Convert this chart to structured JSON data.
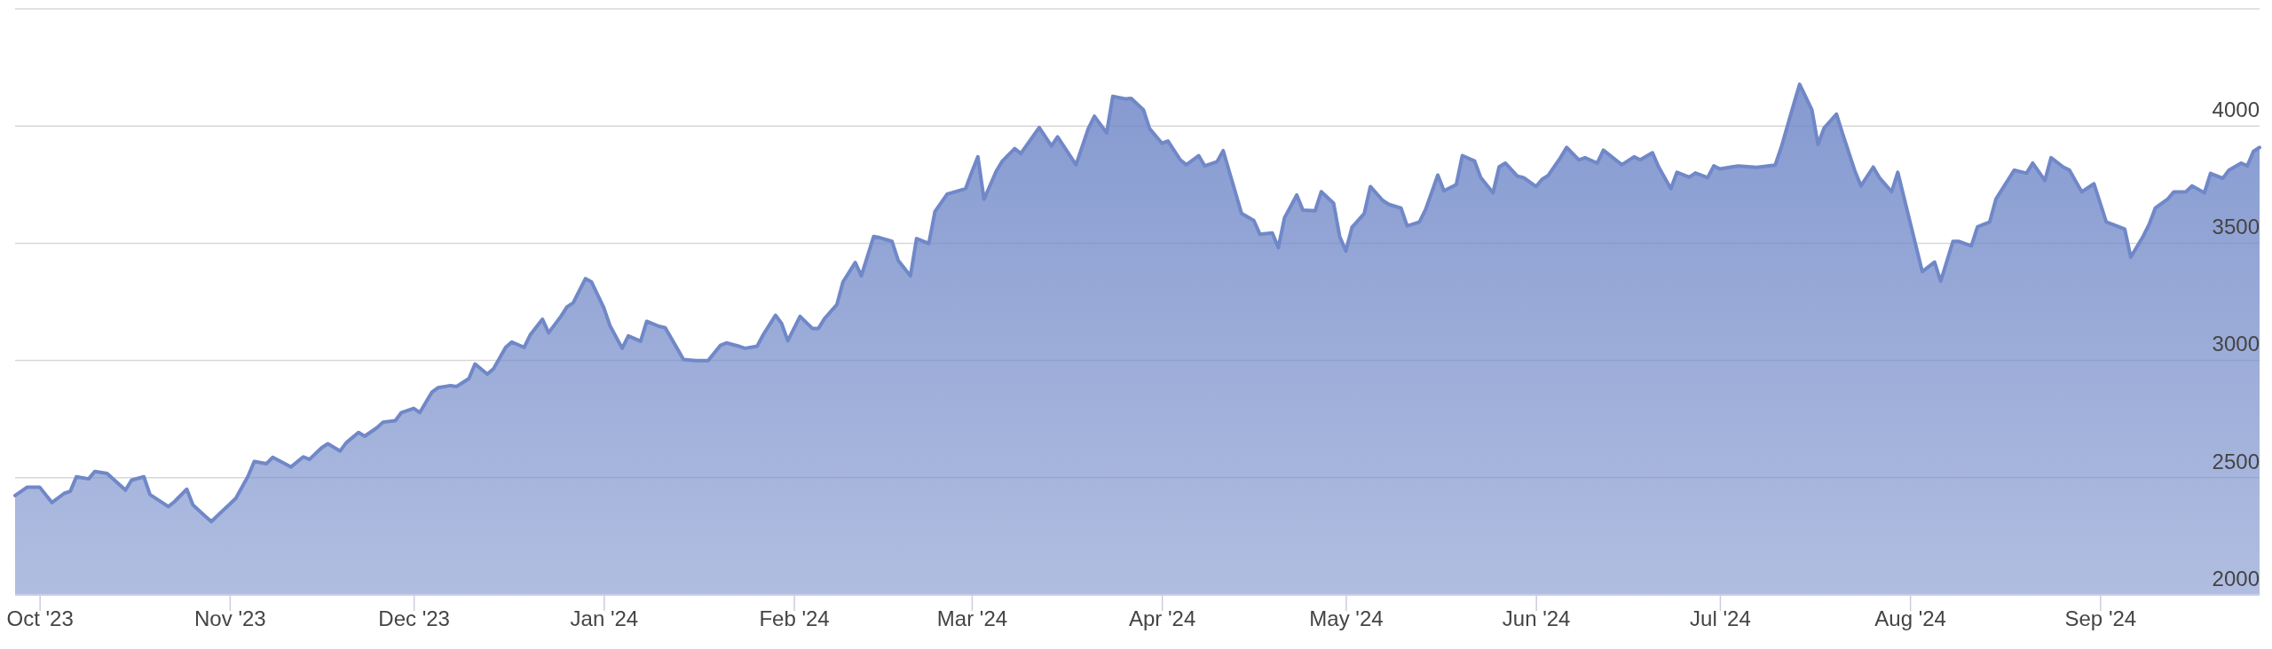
{
  "chart_data": {
    "type": "area",
    "color": "#7088c8",
    "grid": "y",
    "xlim": [
      "2023-09-27",
      "2024-09-27"
    ],
    "ylim": [
      2000,
      4500
    ],
    "yticks": [
      2000,
      2500,
      3000,
      3500,
      4000,
      {
        "value": 4500,
        "label": null
      }
    ],
    "xticks": [
      {
        "value": "2023-10-01",
        "label": "Oct '23"
      },
      {
        "value": "2023-11-01",
        "label": "Nov '23"
      },
      {
        "value": "2023-12-01",
        "label": "Dec '23"
      },
      {
        "value": "2024-01-01",
        "label": "Jan '24"
      },
      {
        "value": "2024-02-01",
        "label": "Feb '24"
      },
      {
        "value": "2024-03-01",
        "label": "Mar '24"
      },
      {
        "value": "2024-04-01",
        "label": "Apr '24"
      },
      {
        "value": "2024-05-01",
        "label": "May '24"
      },
      {
        "value": "2024-06-01",
        "label": "Jun '24"
      },
      {
        "value": "2024-07-01",
        "label": "Jul '24"
      },
      {
        "value": "2024-08-01",
        "label": "Aug '24"
      },
      {
        "value": "2024-09-01",
        "label": "Sep '24"
      }
    ],
    "x": [
      "2023-09-27",
      "2023-09-29",
      "2023-10-01",
      "2023-10-03",
      "2023-10-05",
      "2023-10-06",
      "2023-10-07",
      "2023-10-09",
      "2023-10-10",
      "2023-10-12",
      "2023-10-15",
      "2023-10-16",
      "2023-10-18",
      "2023-10-19",
      "2023-10-22",
      "2023-10-23",
      "2023-10-25",
      "2023-10-26",
      "2023-10-28",
      "2023-10-29",
      "2023-11-02",
      "2023-11-04",
      "2023-11-05",
      "2023-11-07",
      "2023-11-08",
      "2023-11-10",
      "2023-11-11",
      "2023-11-13",
      "2023-11-14",
      "2023-11-16",
      "2023-11-17",
      "2023-11-19",
      "2023-11-20",
      "2023-11-22",
      "2023-11-23",
      "2023-11-25",
      "2023-11-26",
      "2023-11-28",
      "2023-11-29",
      "2023-12-01",
      "2023-12-02",
      "2023-12-04",
      "2023-12-05",
      "2023-12-07",
      "2023-12-08",
      "2023-12-10",
      "2023-12-11",
      "2023-12-13",
      "2023-12-14",
      "2023-12-16",
      "2023-12-17",
      "2023-12-19",
      "2023-12-20",
      "2023-12-22",
      "2023-12-23",
      "2023-12-25",
      "2023-12-26",
      "2023-12-27",
      "2023-12-29",
      "2023-12-30",
      "2024-01-01",
      "2024-01-02",
      "2024-01-04",
      "2024-01-05",
      "2024-01-07",
      "2024-01-08",
      "2024-01-10",
      "2024-01-11",
      "2024-01-14",
      "2024-01-16",
      "2024-01-18",
      "2024-01-20",
      "2024-01-21",
      "2024-01-23",
      "2024-01-24",
      "2024-01-26",
      "2024-01-27",
      "2024-01-29",
      "2024-01-30",
      "2024-01-31",
      "2024-02-02",
      "2024-02-04",
      "2024-02-05",
      "2024-02-06",
      "2024-02-08",
      "2024-02-09",
      "2024-02-11",
      "2024-02-12",
      "2024-02-14",
      "2024-02-15",
      "2024-02-17",
      "2024-02-18",
      "2024-02-20",
      "2024-02-21",
      "2024-02-23",
      "2024-02-24",
      "2024-02-26",
      "2024-02-29",
      "2024-03-01",
      "2024-03-02",
      "2024-03-03",
      "2024-03-05",
      "2024-03-06",
      "2024-03-08",
      "2024-03-09",
      "2024-03-12",
      "2024-03-14",
      "2024-03-15",
      "2024-03-18",
      "2024-03-20",
      "2024-03-21",
      "2024-03-23",
      "2024-03-24",
      "2024-03-26",
      "2024-03-27",
      "2024-03-29",
      "2024-03-30",
      "2024-04-01",
      "2024-04-02",
      "2024-04-04",
      "2024-04-05",
      "2024-04-07",
      "2024-04-08",
      "2024-04-10",
      "2024-04-11",
      "2024-04-14",
      "2024-04-16",
      "2024-04-17",
      "2024-04-19",
      "2024-04-20",
      "2024-04-21",
      "2024-04-23",
      "2024-04-24",
      "2024-04-26",
      "2024-04-27",
      "2024-04-29",
      "2024-04-30",
      "2024-05-01",
      "2024-05-02",
      "2024-05-04",
      "2024-05-05",
      "2024-05-07",
      "2024-05-08",
      "2024-05-10",
      "2024-05-11",
      "2024-05-13",
      "2024-05-14",
      "2024-05-16",
      "2024-05-17",
      "2024-05-19",
      "2024-05-20",
      "2024-05-22",
      "2024-05-23",
      "2024-05-25",
      "2024-05-26",
      "2024-05-27",
      "2024-05-29",
      "2024-05-30",
      "2024-06-01",
      "2024-06-02",
      "2024-06-03",
      "2024-06-05",
      "2024-06-06",
      "2024-06-08",
      "2024-06-09",
      "2024-06-11",
      "2024-06-12",
      "2024-06-15",
      "2024-06-17",
      "2024-06-18",
      "2024-06-20",
      "2024-06-21",
      "2024-06-23",
      "2024-06-24",
      "2024-06-26",
      "2024-06-27",
      "2024-06-29",
      "2024-06-30",
      "2024-07-01",
      "2024-07-03",
      "2024-07-04",
      "2024-07-07",
      "2024-07-10",
      "2024-07-11",
      "2024-07-13",
      "2024-07-14",
      "2024-07-16",
      "2024-07-17",
      "2024-07-18",
      "2024-07-20",
      "2024-07-21",
      "2024-07-23",
      "2024-07-24",
      "2024-07-26",
      "2024-07-27",
      "2024-07-29",
      "2024-07-30",
      "2024-08-03",
      "2024-08-05",
      "2024-08-06",
      "2024-08-08",
      "2024-08-09",
      "2024-08-11",
      "2024-08-12",
      "2024-08-14",
      "2024-08-15",
      "2024-08-18",
      "2024-08-20",
      "2024-08-21",
      "2024-08-23",
      "2024-08-24",
      "2024-08-26",
      "2024-08-27",
      "2024-08-29",
      "2024-08-31",
      "2024-09-02",
      "2024-09-05",
      "2024-09-06",
      "2024-09-08",
      "2024-09-09",
      "2024-09-10",
      "2024-09-12",
      "2024-09-13",
      "2024-09-15",
      "2024-09-16",
      "2024-09-18",
      "2024-09-19",
      "2024-09-21",
      "2024-09-22",
      "2024-09-24",
      "2024-09-25",
      "2024-09-26",
      "2024-09-27"
    ],
    "values": [
      2424,
      2460,
      2460,
      2394,
      2433,
      2442,
      2504,
      2495,
      2527,
      2518,
      2447,
      2490,
      2504,
      2428,
      2377,
      2398,
      2451,
      2384,
      2336,
      2313,
      2412,
      2507,
      2569,
      2560,
      2587,
      2560,
      2546,
      2589,
      2578,
      2628,
      2645,
      2614,
      2649,
      2693,
      2677,
      2713,
      2737,
      2743,
      2778,
      2796,
      2778,
      2866,
      2884,
      2893,
      2889,
      2923,
      2985,
      2942,
      2964,
      3056,
      3079,
      3056,
      3109,
      3176,
      3118,
      3188,
      3229,
      3246,
      3349,
      3335,
      3225,
      3149,
      3052,
      3105,
      3082,
      3167,
      3146,
      3140,
      3004,
      2999,
      2999,
      3064,
      3075,
      3061,
      3052,
      3061,
      3110,
      3193,
      3158,
      3084,
      3188,
      3137,
      3137,
      3179,
      3238,
      3335,
      3418,
      3361,
      3529,
      3524,
      3508,
      3427,
      3361,
      3520,
      3499,
      3635,
      3710,
      3733,
      3803,
      3869,
      3688,
      3808,
      3851,
      3904,
      3883,
      3994,
      3915,
      3954,
      3835,
      3989,
      4042,
      3971,
      4127,
      4116,
      4118,
      4069,
      3989,
      3927,
      3936,
      3856,
      3835,
      3874,
      3830,
      3848,
      3895,
      3627,
      3597,
      3538,
      3544,
      3482,
      3609,
      3706,
      3641,
      3639,
      3720,
      3671,
      3529,
      3467,
      3568,
      3627,
      3742,
      3683,
      3666,
      3650,
      3574,
      3591,
      3644,
      3791,
      3724,
      3750,
      3874,
      3851,
      3780,
      3715,
      3826,
      3842,
      3786,
      3780,
      3742,
      3773,
      3789,
      3865,
      3909,
      3856,
      3865,
      3842,
      3897,
      3835,
      3869,
      3856,
      3886,
      3826,
      3733,
      3803,
      3782,
      3800,
      3780,
      3830,
      3817,
      3826,
      3830,
      3824,
      3833,
      3909,
      4090,
      4178,
      4069,
      3922,
      3992,
      4051,
      3968,
      3809,
      3745,
      3825,
      3780,
      3720,
      3803,
      3379,
      3420,
      3338,
      3508,
      3508,
      3489,
      3570,
      3591,
      3688,
      3812,
      3799,
      3842,
      3768,
      3865,
      3825,
      3812,
      3719,
      3754,
      3591,
      3561,
      3441,
      3529,
      3581,
      3650,
      3688,
      3719,
      3720,
      3745,
      3715,
      3798,
      3777,
      3812,
      3842,
      3830,
      3892,
      3909
    ]
  }
}
